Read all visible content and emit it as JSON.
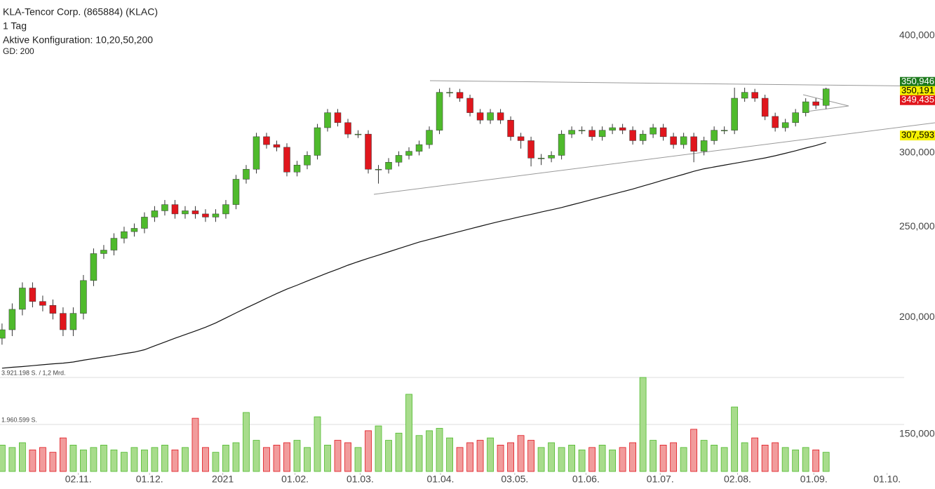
{
  "chart_data": {
    "type": "candlestick",
    "title": "KLA-Tencor Corp. (865884) (KLAC)",
    "subtitle": "1 Tag",
    "config": "Aktive Konfiguration: 10,20,50,200",
    "ma_label": "GD: 200",
    "log_scale": true,
    "grid": false,
    "ylim": [
      135.7,
      436.8
    ],
    "yticks": [
      {
        "value": 400,
        "label": "400,000"
      },
      {
        "value": 300,
        "label": "300,000"
      },
      {
        "value": 250,
        "label": "250,000"
      },
      {
        "value": 200,
        "label": "200,000"
      },
      {
        "value": 150,
        "label": "150,000"
      }
    ],
    "xlim": [
      -0.2,
      88.4
    ],
    "xticks": [
      {
        "value": 7.5,
        "label": "02.11."
      },
      {
        "value": 14.5,
        "label": "01.12."
      },
      {
        "value": 21.7,
        "label": "2021"
      },
      {
        "value": 28.8,
        "label": "01.02."
      },
      {
        "value": 35.2,
        "label": "01.03."
      },
      {
        "value": 43.1,
        "label": "01.04."
      },
      {
        "value": 50.4,
        "label": "03.05."
      },
      {
        "value": 57.4,
        "label": "01.06."
      },
      {
        "value": 64.7,
        "label": "01.07."
      },
      {
        "value": 72.3,
        "label": "02.08."
      },
      {
        "value": 79.8,
        "label": "01.09."
      },
      {
        "value": 87.0,
        "label": "01.10."
      }
    ],
    "up_color": "#4fba2c",
    "down_color": "#e0161d",
    "open": [
      190,
      194,
      204,
      215,
      208,
      206,
      202,
      194,
      202,
      219,
      234,
      236,
      243,
      247,
      249,
      256,
      260,
      264,
      258,
      260,
      258,
      256,
      258,
      264,
      281,
      288,
      312,
      306,
      304,
      286,
      291,
      298,
      319,
      331,
      323,
      314,
      314,
      288,
      288,
      293,
      298,
      301,
      306,
      317,
      348,
      348,
      343,
      331,
      325,
      331,
      325,
      312,
      309,
      296,
      296,
      298,
      314,
      317,
      317,
      312,
      317,
      319,
      317,
      309,
      314,
      319,
      312,
      306,
      312,
      301,
      309,
      317,
      317,
      343,
      348,
      343,
      328,
      319,
      323,
      331,
      340,
      337
    ],
    "high": [
      197,
      207,
      218,
      218,
      211,
      209,
      205,
      205,
      222,
      237,
      239,
      246,
      250,
      252,
      259,
      263,
      267,
      267,
      263,
      263,
      261,
      261,
      267,
      284,
      291,
      315,
      315,
      309,
      307,
      294,
      301,
      322,
      334,
      334,
      326,
      317,
      317,
      291,
      296,
      301,
      304,
      309,
      320,
      351,
      352,
      351,
      346,
      334,
      334,
      334,
      328,
      315,
      312,
      299,
      301,
      317,
      320,
      320,
      320,
      320,
      322,
      322,
      320,
      317,
      322,
      322,
      315,
      315,
      315,
      312,
      320,
      320,
      352,
      352,
      351,
      346,
      331,
      326,
      334,
      343,
      343,
      352
    ],
    "low": [
      187,
      191,
      201,
      205,
      203,
      199,
      191,
      191,
      199,
      216,
      231,
      233,
      240,
      244,
      246,
      253,
      257,
      255,
      255,
      255,
      253,
      253,
      255,
      261,
      278,
      285,
      303,
      301,
      283,
      283,
      288,
      295,
      316,
      320,
      311,
      311,
      285,
      278,
      285,
      290,
      295,
      298,
      303,
      314,
      344,
      340,
      328,
      322,
      322,
      322,
      309,
      303,
      290,
      291,
      293,
      295,
      311,
      314,
      309,
      309,
      314,
      314,
      306,
      306,
      311,
      309,
      303,
      303,
      293,
      298,
      306,
      314,
      314,
      340,
      340,
      325,
      316,
      316,
      320,
      328,
      334,
      334
    ],
    "close": [
      194,
      204,
      215,
      208,
      206,
      202,
      194,
      202,
      219,
      234,
      236,
      243,
      247,
      249,
      256,
      260,
      264,
      258,
      260,
      258,
      256,
      258,
      264,
      281,
      288,
      312,
      306,
      304,
      286,
      291,
      298,
      319,
      331,
      323,
      314,
      314,
      288,
      288,
      293,
      298,
      301,
      306,
      317,
      348,
      348,
      343,
      331,
      325,
      331,
      325,
      312,
      309,
      296,
      296,
      298,
      314,
      317,
      317,
      312,
      317,
      319,
      317,
      309,
      314,
      319,
      312,
      306,
      312,
      301,
      309,
      317,
      317,
      343,
      348,
      343,
      328,
      319,
      323,
      331,
      340,
      337,
      350.946
    ],
    "volume": [
      1100000,
      1000000,
      1200000,
      900000,
      1000000,
      800000,
      1400000,
      1100000,
      900000,
      1000000,
      1100000,
      900000,
      800000,
      1000000,
      900000,
      1000000,
      1100000,
      900000,
      1000000,
      2220000,
      1000000,
      800000,
      1100000,
      1200000,
      2460000,
      1300000,
      1000000,
      1100000,
      1200000,
      1300000,
      1000000,
      2280000,
      1100000,
      1300000,
      1200000,
      1000000,
      1700000,
      1900000,
      1300000,
      1600000,
      3220000,
      1500000,
      1700000,
      1800000,
      1400000,
      1000000,
      1200000,
      1300000,
      1400000,
      1100000,
      1200000,
      1500000,
      1300000,
      1000000,
      1200000,
      1000000,
      1100000,
      900000,
      1000000,
      1100000,
      900000,
      1000000,
      1200000,
      3921198,
      1300000,
      1100000,
      1200000,
      1000000,
      1760000,
      1300000,
      1100000,
      1000000,
      2690000,
      1200000,
      1400000,
      1100000,
      1200000,
      1000000,
      900000,
      1000000,
      900000,
      800000
    ],
    "volume_lim": [
      0,
      3921198
    ],
    "volume_ticks": [
      {
        "value": 3921198,
        "label": "3.921.198 S. / 1,2 Mrd."
      },
      {
        "value": 1960599,
        "label": "1.960.599 S."
      }
    ],
    "volume_up_color": "#a8dc8c",
    "volume_down_color": "#f19c9c",
    "ma200": {
      "color": "#111111",
      "values": [
        176.5,
        176.9,
        177.2,
        177.6,
        178.0,
        178.4,
        178.7,
        179.2,
        180.0,
        180.7,
        181.4,
        182.1,
        182.9,
        183.6,
        184.7,
        186.5,
        188.2,
        190.0,
        191.7,
        193.4,
        195.2,
        197.3,
        199.7,
        202.2,
        204.7,
        207.1,
        209.6,
        212.1,
        214.4,
        216.5,
        218.7,
        220.9,
        223.1,
        225.2,
        227.4,
        229.4,
        231.3,
        233.1,
        235.0,
        236.9,
        238.8,
        240.7,
        242.3,
        243.9,
        245.5,
        247.1,
        248.7,
        250.3,
        251.9,
        253.4,
        254.8,
        256.3,
        257.7,
        259.2,
        260.6,
        262.1,
        263.8,
        265.5,
        267.3,
        269.0,
        270.8,
        272.5,
        274.3,
        276.3,
        278.3,
        280.4,
        282.4,
        284.4,
        286.5,
        288.3,
        289.6,
        290.9,
        292.2,
        293.5,
        294.8,
        296.1,
        297.7,
        299.5,
        301.4,
        303.4,
        305.3,
        307.593
      ]
    },
    "price_labels": [
      {
        "value": 350.946,
        "label": "350,946",
        "color": "#1d7a1d",
        "text_color": "#ffffff"
      },
      {
        "value": 350.191,
        "label": "350,191",
        "color": "#f5f000",
        "text_color": "#000000"
      },
      {
        "value": 349.435,
        "label": "349,435",
        "color": "#e0161d",
        "text_color": "#ffffff"
      },
      {
        "value": 307.593,
        "label": "307,593",
        "color": "#f5f000",
        "text_color": "#000000"
      }
    ]
  }
}
